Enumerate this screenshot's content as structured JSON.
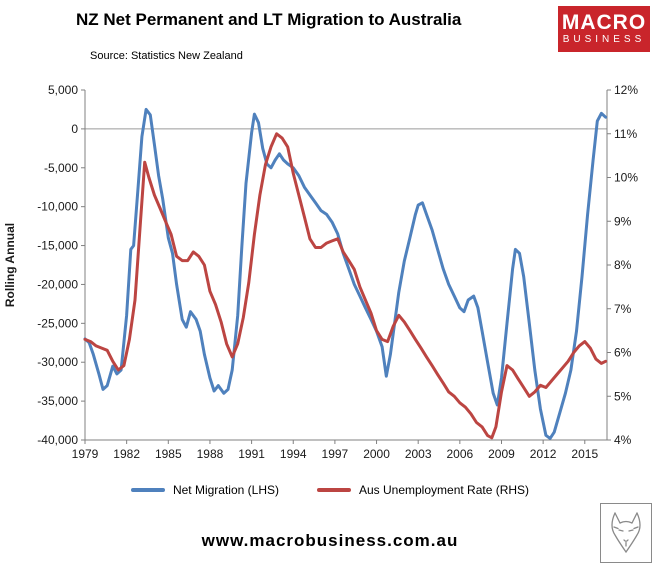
{
  "header": {
    "title": "NZ Net Permanent and LT Migration to Australia",
    "source": "Source: Statistics New Zealand",
    "logo": {
      "line1": "MACRO",
      "line2": "BUSINESS",
      "color": "#c9252b"
    }
  },
  "footer": {
    "url": "www.macrobusiness.com.au"
  },
  "chart_data": {
    "type": "line",
    "title": "NZ Net Permanent and LT Migration to Australia",
    "ylabel_left": "Rolling Annual",
    "grid": "zero-line-only",
    "legend_position": "bottom",
    "x_domain": [
      1979,
      2016.6
    ],
    "x_ticks": {
      "values": [
        1979,
        1982,
        1985,
        1988,
        1991,
        1994,
        1997,
        2000,
        2003,
        2006,
        2009,
        2012,
        2015
      ],
      "labels": [
        "1979",
        "1982",
        "1985",
        "1988",
        "1991",
        "1994",
        "1997",
        "2000",
        "2003",
        "2006",
        "2009",
        "2012",
        "2015"
      ]
    },
    "left_axis": {
      "min": -40000,
      "max": 5000,
      "tick_values": [
        5000,
        0,
        -5000,
        -10000,
        -15000,
        -20000,
        -25000,
        -30000,
        -35000,
        -40000
      ],
      "tick_labels": [
        "5,000",
        "0",
        "-5,000",
        "-10,000",
        "-15,000",
        "-20,000",
        "-25,000",
        "-30,000",
        "-35,000",
        "-40,000"
      ]
    },
    "right_axis": {
      "min": 4,
      "max": 12,
      "tick_values": [
        12,
        11,
        10,
        9,
        8,
        7,
        6,
        5,
        4
      ],
      "tick_labels": [
        "12%",
        "11%",
        "10%",
        "9%",
        "8%",
        "7%",
        "6%",
        "5%",
        "4%"
      ]
    },
    "zero_line_value": 0,
    "series": [
      {
        "name": "Net Migration (LHS)",
        "axis": "left",
        "color": "#4f81bd",
        "x": [
          1979.0,
          1979.3,
          1979.6,
          1980.0,
          1980.3,
          1980.6,
          1981.0,
          1981.3,
          1981.6,
          1982.0,
          1982.3,
          1982.5,
          1982.8,
          1983.1,
          1983.4,
          1983.7,
          1984.0,
          1984.3,
          1984.6,
          1985.0,
          1985.3,
          1985.6,
          1986.0,
          1986.3,
          1986.6,
          1987.0,
          1987.3,
          1987.6,
          1988.0,
          1988.3,
          1988.6,
          1989.0,
          1989.3,
          1989.6,
          1990.0,
          1990.3,
          1990.6,
          1991.0,
          1991.2,
          1991.5,
          1991.8,
          1992.1,
          1992.4,
          1992.7,
          1993.0,
          1993.3,
          1993.6,
          1994.0,
          1994.4,
          1994.8,
          1995.2,
          1995.6,
          1996.0,
          1996.4,
          1996.8,
          1997.2,
          1997.6,
          1998.0,
          1998.4,
          1998.8,
          1999.2,
          1999.6,
          2000.0,
          2000.4,
          2000.7,
          2001.0,
          2001.3,
          2001.6,
          2002.0,
          2002.4,
          2002.8,
          2003.0,
          2003.3,
          2003.6,
          2004.0,
          2004.4,
          2004.8,
          2005.2,
          2005.6,
          2006.0,
          2006.3,
          2006.6,
          2007.0,
          2007.3,
          2007.6,
          2008.0,
          2008.4,
          2008.7,
          2009.0,
          2009.4,
          2009.8,
          2010.0,
          2010.3,
          2010.6,
          2011.0,
          2011.4,
          2011.8,
          2012.2,
          2012.5,
          2012.8,
          2013.2,
          2013.6,
          2014.0,
          2014.4,
          2014.8,
          2015.2,
          2015.6,
          2015.9,
          2016.2,
          2016.5
        ],
        "values": [
          -27000,
          -27500,
          -29000,
          -31500,
          -33500,
          -33000,
          -30500,
          -31500,
          -31000,
          -24000,
          -15500,
          -15000,
          -8000,
          -1000,
          2500,
          1800,
          -2000,
          -6000,
          -9000,
          -14000,
          -16000,
          -20000,
          -24500,
          -25500,
          -23500,
          -24500,
          -26000,
          -29000,
          -32000,
          -33700,
          -33000,
          -34000,
          -33500,
          -31000,
          -24000,
          -15000,
          -7000,
          -500,
          1900,
          800,
          -2500,
          -4500,
          -5000,
          -4000,
          -3200,
          -4000,
          -4500,
          -5000,
          -6000,
          -7500,
          -8500,
          -9500,
          -10500,
          -11000,
          -12000,
          -13500,
          -16000,
          -18000,
          -20000,
          -21500,
          -23000,
          -24500,
          -26000,
          -28000,
          -31800,
          -29000,
          -25000,
          -21000,
          -17000,
          -14000,
          -11000,
          -9800,
          -9500,
          -11000,
          -13000,
          -15500,
          -18000,
          -20000,
          -21500,
          -23000,
          -23500,
          -22000,
          -21500,
          -23000,
          -26000,
          -30000,
          -34000,
          -35500,
          -32000,
          -25000,
          -18000,
          -15500,
          -16000,
          -19000,
          -25000,
          -31000,
          -36000,
          -39400,
          -39800,
          -39000,
          -36500,
          -34000,
          -31000,
          -26000,
          -19000,
          -11000,
          -4000,
          1000,
          2000,
          1500
        ]
      },
      {
        "name": "Aus Unemployment Rate (RHS)",
        "axis": "right",
        "color": "#bc4542",
        "x": [
          1979.0,
          1979.4,
          1979.8,
          1980.2,
          1980.6,
          1981.0,
          1981.4,
          1981.8,
          1982.2,
          1982.6,
          1983.0,
          1983.3,
          1983.6,
          1984.0,
          1984.4,
          1984.8,
          1985.2,
          1985.6,
          1986.0,
          1986.4,
          1986.8,
          1987.2,
          1987.6,
          1988.0,
          1988.4,
          1988.8,
          1989.2,
          1989.6,
          1990.0,
          1990.4,
          1990.8,
          1991.2,
          1991.6,
          1992.0,
          1992.4,
          1992.8,
          1993.2,
          1993.6,
          1994.0,
          1994.4,
          1994.8,
          1995.2,
          1995.6,
          1996.0,
          1996.4,
          1996.8,
          1997.2,
          1997.6,
          1998.0,
          1998.4,
          1998.8,
          1999.2,
          1999.6,
          2000.0,
          2000.4,
          2000.8,
          2001.2,
          2001.6,
          2002.0,
          2002.4,
          2002.8,
          2003.2,
          2003.6,
          2004.0,
          2004.4,
          2004.8,
          2005.2,
          2005.6,
          2006.0,
          2006.4,
          2006.8,
          2007.2,
          2007.6,
          2008.0,
          2008.3,
          2008.6,
          2009.0,
          2009.4,
          2009.8,
          2010.2,
          2010.6,
          2011.0,
          2011.4,
          2011.8,
          2012.2,
          2012.6,
          2013.0,
          2013.4,
          2013.8,
          2014.2,
          2014.6,
          2015.0,
          2015.4,
          2015.8,
          2016.2,
          2016.5
        ],
        "values": [
          6.3,
          6.25,
          6.15,
          6.1,
          6.05,
          5.8,
          5.6,
          5.7,
          6.3,
          7.2,
          9.0,
          10.35,
          10.0,
          9.6,
          9.3,
          9.0,
          8.7,
          8.2,
          8.1,
          8.1,
          8.3,
          8.2,
          8.0,
          7.4,
          7.1,
          6.7,
          6.2,
          5.9,
          6.2,
          6.8,
          7.6,
          8.7,
          9.6,
          10.3,
          10.7,
          11.0,
          10.9,
          10.7,
          10.1,
          9.6,
          9.1,
          8.6,
          8.4,
          8.4,
          8.5,
          8.55,
          8.6,
          8.3,
          8.1,
          7.9,
          7.5,
          7.2,
          6.9,
          6.5,
          6.3,
          6.25,
          6.6,
          6.85,
          6.7,
          6.5,
          6.3,
          6.1,
          5.9,
          5.7,
          5.5,
          5.3,
          5.1,
          5.0,
          4.85,
          4.75,
          4.6,
          4.4,
          4.3,
          4.1,
          4.05,
          4.3,
          5.1,
          5.7,
          5.6,
          5.4,
          5.2,
          5.0,
          5.1,
          5.25,
          5.2,
          5.35,
          5.5,
          5.65,
          5.8,
          6.0,
          6.15,
          6.25,
          6.1,
          5.85,
          5.75,
          5.8
        ]
      }
    ]
  }
}
